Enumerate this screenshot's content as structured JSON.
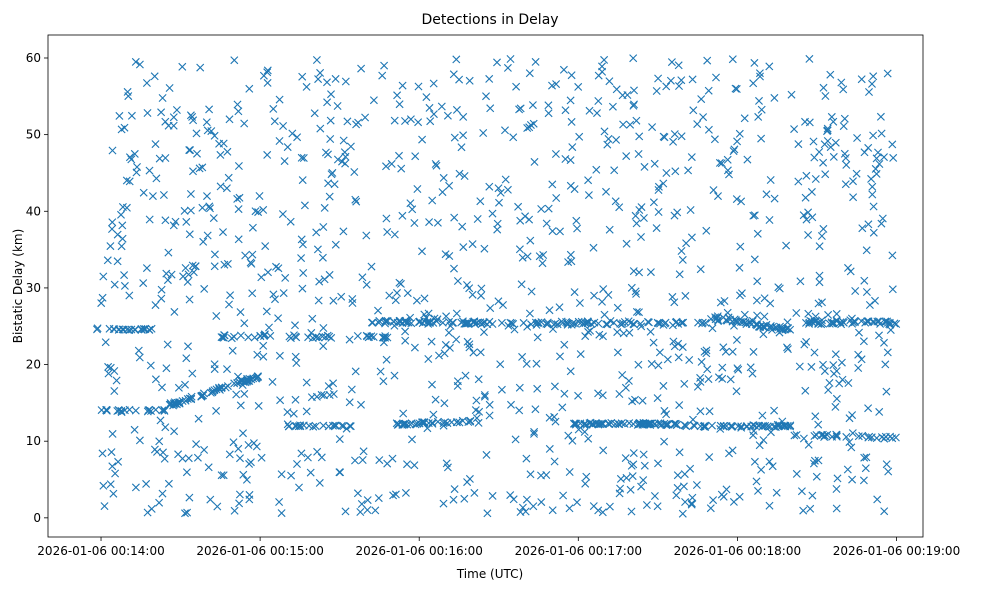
{
  "chart_data": {
    "type": "scatter",
    "title": "Detections in Delay",
    "xlabel": "Time (UTC)",
    "ylabel": "Bistatic Delay (km)",
    "marker": "x",
    "color": "#1f77b4",
    "grid": false,
    "legend": "none",
    "x_tick_labels": [
      "2026-01-06 00:14:00",
      "2026-01-06 00:15:00",
      "2026-01-06 00:16:00",
      "2026-01-06 00:17:00",
      "2026-01-06 00:18:00",
      "2026-01-06 00:19:00"
    ],
    "x_ticks_seconds_after_00:14:00": [
      0,
      60,
      120,
      180,
      240,
      300
    ],
    "xlim_seconds_after_00:14:00": [
      -20,
      310
    ],
    "y_ticks": [
      0,
      10,
      20,
      30,
      40,
      50,
      60
    ],
    "ylim": [
      -2.5,
      63
    ],
    "x_data_range_seconds_after_00:14:00": [
      0,
      300
    ],
    "tracks": [
      {
        "x": [
          8,
          20,
          20
        ],
        "y": [
          14,
          14,
          14
        ]
      },
      {
        "x": [
          20,
          70
        ],
        "y": [
          14,
          18
        ]
      }
    ]
  }
}
